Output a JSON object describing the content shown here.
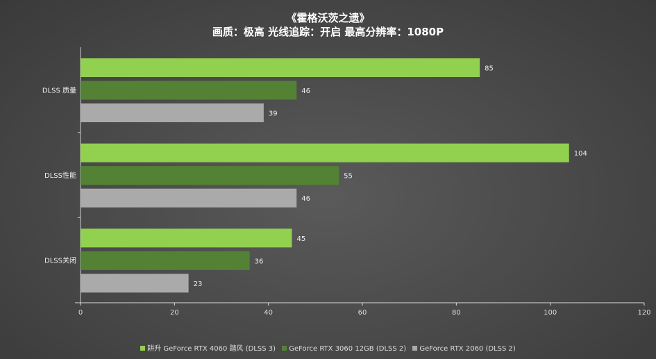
{
  "chart_data": {
    "type": "bar",
    "orientation": "horizontal",
    "title": "《霍格沃茨之遗》",
    "subtitle": "画质：极高  光线追踪：开启  最高分辨率：1080P",
    "categories": [
      "DLSS 质量",
      "DLSS性能",
      "DLSS关闭"
    ],
    "series": [
      {
        "name": "耕升 GeForce RTX 4060 踏风  (DLSS 3)",
        "color": "#92d050",
        "values": [
          85,
          104,
          45
        ]
      },
      {
        "name": "GeForce RTX 3060 12GB  (DLSS 2)",
        "color": "#548235",
        "values": [
          46,
          55,
          36
        ]
      },
      {
        "name": "GeForce RTX 2060  (DLSS 2)",
        "color": "#aaaaaa",
        "values": [
          39,
          46,
          23
        ]
      }
    ],
    "xlim": [
      0,
      120
    ],
    "xticks": [
      "0",
      "20",
      "40",
      "60",
      "80",
      "100",
      "120"
    ],
    "grid": false,
    "legend": "bottom"
  }
}
